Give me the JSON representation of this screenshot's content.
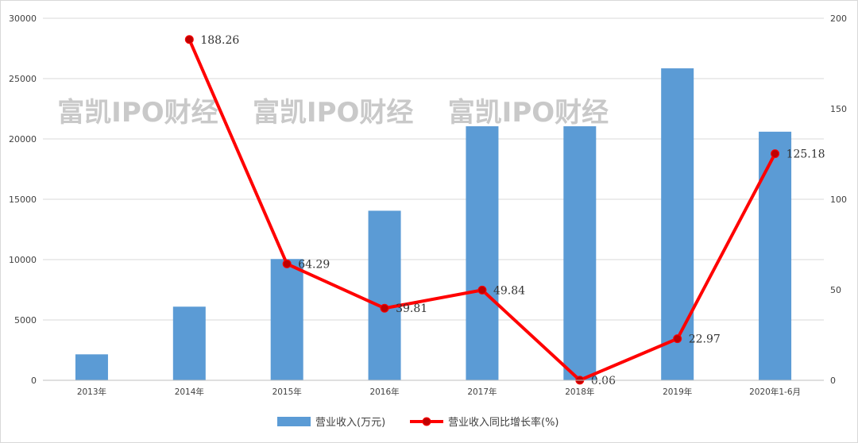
{
  "chart_data": {
    "type": "bar+line",
    "categories": [
      "2013年",
      "2014年",
      "2015年",
      "2016年",
      "2017年",
      "2018年",
      "2019年",
      "2020年1-6月"
    ],
    "series": [
      {
        "name": "营业收入(万元)",
        "type": "bar",
        "axis": "left",
        "color": "#5b9bd5",
        "values": [
          2150,
          6100,
          10050,
          14050,
          21050,
          21050,
          25850,
          20600
        ]
      },
      {
        "name": "营业收入同比增长率(%)",
        "type": "line",
        "axis": "right",
        "color": "#ff0000",
        "values": [
          null,
          188.26,
          64.29,
          39.81,
          49.84,
          0.06,
          22.97,
          125.18
        ],
        "data_labels": [
          "",
          "188.26",
          "64.29",
          "39.81",
          "49.84",
          "0.06",
          "22.97",
          "125.18"
        ]
      }
    ],
    "y_left": {
      "min": 0,
      "max": 30000,
      "ticks": [
        "0",
        "5000",
        "10000",
        "15000",
        "20000",
        "25000",
        "30000"
      ]
    },
    "y_right": {
      "min": 0,
      "max": 200,
      "ticks": [
        "0",
        "50",
        "100",
        "150",
        "200"
      ]
    },
    "grid": true,
    "legend_position": "bottom",
    "watermark": "富凯IPO财经"
  }
}
